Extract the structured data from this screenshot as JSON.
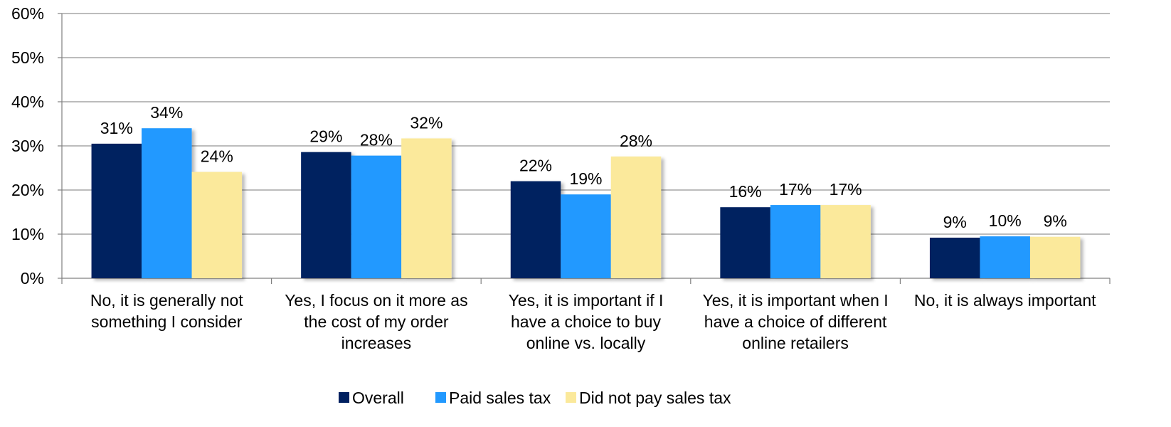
{
  "chart_data": {
    "type": "bar",
    "categories": [
      [
        "No, it is generally not",
        "something I consider"
      ],
      [
        "Yes, I focus on it more as",
        "the cost of my order",
        "increases"
      ],
      [
        "Yes, it is important if I",
        "have a choice to buy",
        "online vs. locally"
      ],
      [
        "Yes, it is important when I",
        "have a choice of different",
        "online retailers"
      ],
      [
        "No, it is always important"
      ]
    ],
    "series": [
      {
        "name": "Overall",
        "color": "#002060",
        "values": [
          30.5,
          28.6,
          22.0,
          16.1,
          9.2
        ],
        "labels": [
          "31%",
          "29%",
          "22%",
          "16%",
          "9%"
        ]
      },
      {
        "name": "Paid sales tax",
        "color": "#2299FF",
        "values": [
          34.0,
          27.8,
          19.0,
          16.6,
          9.5
        ],
        "labels": [
          "34%",
          "28%",
          "19%",
          "17%",
          "10%"
        ]
      },
      {
        "name": "Did not pay sales tax",
        "color": "#FBE99B",
        "values": [
          24.1,
          31.7,
          27.6,
          16.6,
          9.4
        ],
        "labels": [
          "24%",
          "32%",
          "28%",
          "17%",
          "9%"
        ]
      }
    ],
    "yticks": [
      "0%",
      "10%",
      "20%",
      "30%",
      "40%",
      "50%",
      "60%"
    ],
    "ylim": [
      0,
      60
    ],
    "grid": true,
    "legend_position": "bottom",
    "title": "",
    "xlabel": "",
    "ylabel": ""
  }
}
